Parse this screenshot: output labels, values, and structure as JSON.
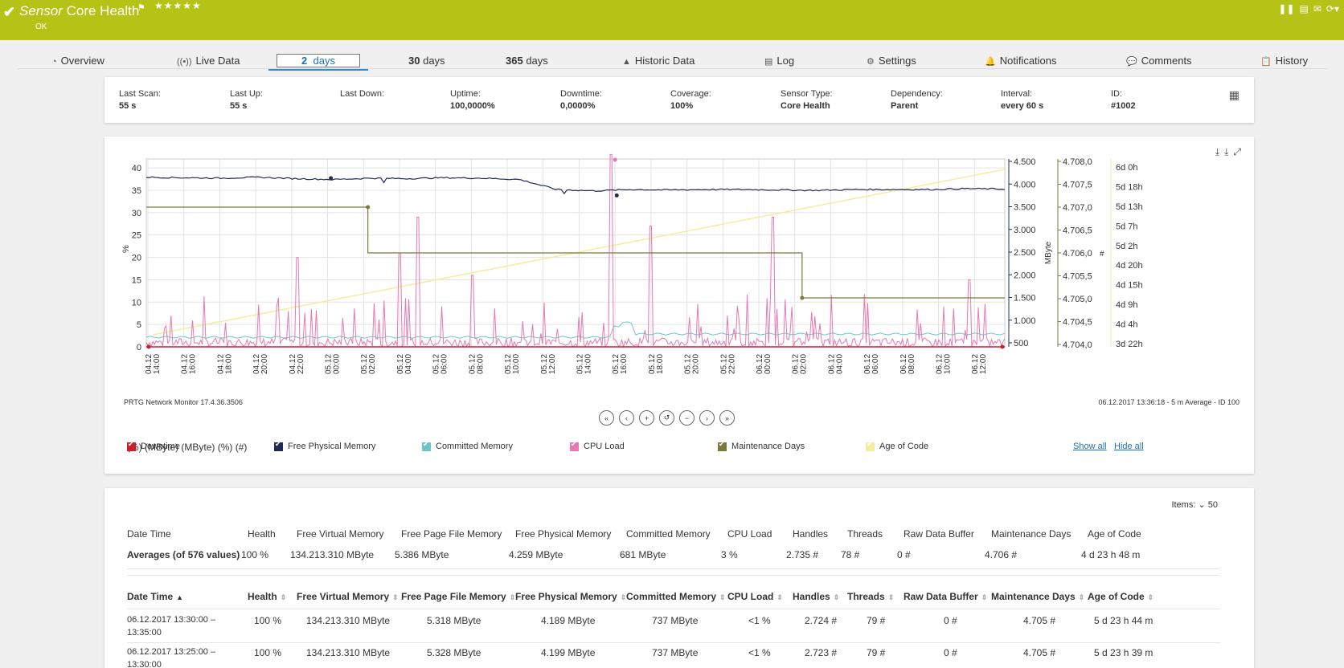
{
  "header": {
    "title_italic": "Sensor",
    "title_rest": " Core Health",
    "stars": "★★★★★",
    "status": "OK",
    "icons": [
      "pause-icon",
      "export-icon",
      "mail-icon",
      "refresh-icon"
    ]
  },
  "tabs": [
    {
      "icon": "◔",
      "label": "Overview"
    },
    {
      "icon": "((•))",
      "label": "Live Data"
    },
    {
      "label_num": "2",
      "label_unit": "days"
    },
    {
      "label_num": "30",
      "label_unit": "days"
    },
    {
      "label_num": "365",
      "label_unit": "days"
    },
    {
      "icon": "▲",
      "label": "Historic Data"
    },
    {
      "icon": "▤",
      "label": "Log"
    },
    {
      "icon": "⚙",
      "label": "Settings"
    },
    {
      "icon": "🔔",
      "label": "Notifications"
    },
    {
      "icon": "💬",
      "label": "Comments"
    },
    {
      "icon": "📋",
      "label": "History"
    }
  ],
  "info": [
    {
      "k": "Last Scan:",
      "v": "55 s"
    },
    {
      "k": "Last Up:",
      "v": "55 s"
    },
    {
      "k": "Last Down:",
      "v": ""
    },
    {
      "k": "Uptime:",
      "v": "100,0000%"
    },
    {
      "k": "Downtime:",
      "v": "0,0000%"
    },
    {
      "k": "Coverage:",
      "v": "100%"
    },
    {
      "k": "Sensor Type:",
      "v": "Core Health"
    },
    {
      "k": "Dependency:",
      "v": "Parent"
    },
    {
      "k": "Interval:",
      "v": "every 60 s"
    },
    {
      "k": "ID:",
      "v": "#1002"
    }
  ],
  "chart_data": {
    "type": "line",
    "y_left": {
      "label": "%",
      "ticks": [
        "0",
        "5",
        "10",
        "15",
        "20",
        "25",
        "30",
        "35",
        "40"
      ],
      "ylim": [
        0,
        42
      ]
    },
    "y_right1": {
      "label": "MByte",
      "ticks": [
        "500",
        "1.000",
        "1.500",
        "2.000",
        "2.500",
        "3.000",
        "3.500",
        "4.000",
        "4.500"
      ]
    },
    "y_right2": {
      "label": "#",
      "ticks": [
        "4.704,0",
        "4.704,5",
        "4.705,0",
        "4.705,5",
        "4.706,0",
        "4.706,5",
        "4.707,0",
        "4.707,5",
        "4.708,0"
      ]
    },
    "y_right3": {
      "ticks": [
        "3d 22h",
        "4d 4h",
        "4d 9h",
        "4d 15h",
        "4d 20h",
        "5d 2h",
        "5d 7h",
        "5d 13h",
        "5d 18h",
        "6d 0h"
      ]
    },
    "x_ticks": [
      "04.12 14:00",
      "04.12 16:00",
      "04.12 18:00",
      "04.12 20:00",
      "04.12 22:00",
      "05.12 00:00",
      "05.12 02:00",
      "05.12 04:00",
      "05.12 06:00",
      "05.12 08:00",
      "05.12 10:00",
      "05.12 12:00",
      "05.12 14:00",
      "05.12 16:00",
      "05.12 18:00",
      "05.12 20:00",
      "05.12 22:00",
      "06.12 00:00",
      "06.12 02:00",
      "06.12 04:00",
      "06.12 06:00",
      "06.12 08:00",
      "06.12 10:00",
      "06.12 12:00"
    ],
    "series": [
      {
        "name": "Downtime",
        "color": "#cc1f2e",
        "unit": "%"
      },
      {
        "name": "Free Physical Memory",
        "color": "#1f2b55",
        "unit": "MByte"
      },
      {
        "name": "Committed Memory",
        "color": "#6cc6c8",
        "unit": "MByte"
      },
      {
        "name": "CPU Load",
        "color": "#e57ab0",
        "unit": "%"
      },
      {
        "name": "Maintenance Days",
        "color": "#7b7a3a",
        "unit": "#"
      },
      {
        "name": "Age of Code",
        "color": "#f3eda0",
        "unit": ""
      }
    ],
    "free_physical_memory": [
      4.15,
      4.14,
      4.13,
      4.15,
      4.12,
      4.1,
      4.13,
      4.12,
      4.14,
      4.13,
      4.1,
      3.88,
      3.85,
      3.88,
      3.87,
      3.88,
      3.88,
      3.87,
      3.86,
      3.88,
      3.88,
      3.88,
      3.9,
      3.89
    ],
    "maintenance_days_steps": [
      {
        "x": 0,
        "v": 4707.0
      },
      {
        "x": 5.9,
        "v": 4706.0
      },
      {
        "x": 17.8,
        "v": 4705.0
      }
    ],
    "age_of_code_range": [
      "3d 22h",
      "6d 0h"
    ],
    "cpu_peaks": [
      {
        "x": 4.2,
        "v": 20
      },
      {
        "x": 7.1,
        "v": 21
      },
      {
        "x": 7.6,
        "v": 29
      },
      {
        "x": 9.1,
        "v": 16
      },
      {
        "x": 13.0,
        "v": 43
      },
      {
        "x": 14.1,
        "v": 27
      },
      {
        "x": 17.5,
        "v": 29
      },
      {
        "x": 23.0,
        "v": 15
      }
    ]
  },
  "chart_footer": {
    "left": "PRTG Network Monitor 17.4.36.3506",
    "right": "06.12.2017 13:36:18 - 5 m Average - ID 100"
  },
  "nav_buttons": [
    "«",
    "‹",
    "+",
    "↺",
    "−",
    "›",
    "»"
  ],
  "legend": {
    "show_all": "Show all",
    "hide_all": "Hide all",
    "units": [
      "(%)",
      "(MByte)",
      "(MByte)",
      "(%)",
      "(#)",
      ""
    ]
  },
  "table": {
    "items_label": "Items:",
    "items_value": "50",
    "columns": [
      "Date Time",
      "Health",
      "Free Virtual Memory",
      "Free Page File Memory",
      "Free Physical Memory",
      "Committed Memory",
      "CPU Load",
      "Handles",
      "Threads",
      "Raw Data Buffer",
      "Maintenance Days",
      "Age of Code"
    ],
    "averages": [
      "Averages (of 576 values)",
      "100 %",
      "134.213.310 MByte",
      "5.386 MByte",
      "4.259 MByte",
      "681 MByte",
      "3 %",
      "2.735 #",
      "78 #",
      "0 #",
      "4.706 #",
      "4 d 23 h 48 m"
    ],
    "rows": [
      [
        "06.12.2017 13:30:00 –",
        "100 %",
        "134.213.310 MByte",
        "5.318 MByte",
        "4.189 MByte",
        "737 MByte",
        "<1 %",
        "2.724 #",
        "79 #",
        "0 #",
        "4.705 #",
        "5 d 23 h 44 m",
        "13:35:00"
      ],
      [
        "06.12.2017 13:25:00 –",
        "100 %",
        "134.213.310 MByte",
        "5.328 MByte",
        "4.199 MByte",
        "737 MByte",
        "<1 %",
        "2.723 #",
        "79 #",
        "0 #",
        "4.705 #",
        "5 d 23 h 39 m",
        "13:30:00"
      ]
    ]
  }
}
